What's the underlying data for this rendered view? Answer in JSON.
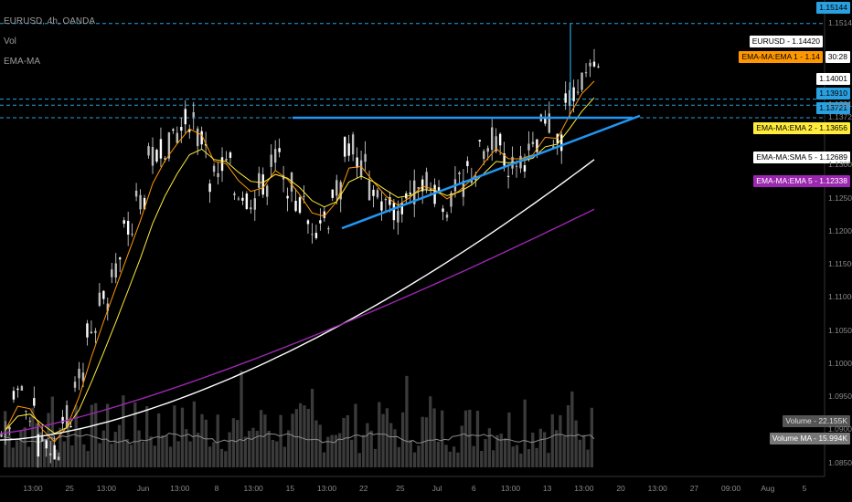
{
  "chart_data": {
    "type": "candlestick",
    "title": "EURUSD, 4h, OANDA",
    "indicators": [
      "Vol",
      "EMA-MA"
    ],
    "y_axis_ticks": [
      "1.15144",
      "1.13910",
      "1.13721",
      "1.13008",
      "1.12500",
      "1.12000",
      "1.11500",
      "1.11000",
      "1.10500",
      "1.10000",
      "1.09500",
      "1.09000",
      "1.08500"
    ],
    "x_axis_ticks": [
      "13:00",
      "25",
      "13:00",
      "Jun",
      "13:00",
      "8",
      "13:00",
      "15",
      "13:00",
      "22",
      "25",
      "Jul",
      "6",
      "13:00",
      "13",
      "13:00",
      "20",
      "13:00",
      "27",
      "09:00",
      "Aug",
      "5"
    ],
    "ylim": [
      1.083,
      1.155
    ],
    "price_series": {
      "approx_close_path": [
        1.09,
        1.096,
        1.093,
        1.088,
        1.087,
        1.092,
        1.098,
        1.105,
        1.11,
        1.115,
        1.12,
        1.125,
        1.131,
        1.133,
        1.135,
        1.137,
        1.134,
        1.128,
        1.13,
        1.126,
        1.125,
        1.127,
        1.131,
        1.127,
        1.124,
        1.121,
        1.122,
        1.126,
        1.133,
        1.13,
        1.126,
        1.124,
        1.123,
        1.126,
        1.128,
        1.126,
        1.124,
        1.127,
        1.129,
        1.132,
        1.134,
        1.13,
        1.131,
        1.132,
        1.136,
        1.134,
        1.14,
        1.143,
        1.144
      ]
    },
    "last_price": {
      "label": "EURUSD",
      "value": "1.14420",
      "color": "#ffffff"
    },
    "countdown": "30:28",
    "price_1400": "1.14001",
    "horizontal_levels": [
      {
        "value": "1.15144",
        "color": "#2aa0e0"
      },
      {
        "value": "1.14001",
        "color": "#2aa0e0"
      },
      {
        "value": "1.13910",
        "color": "#2aa0e0"
      },
      {
        "value": "1.13721",
        "color": "#2aa0e0"
      }
    ],
    "moving_averages": [
      {
        "label": "EMA-MA:EMA 1",
        "value": "1.14",
        "color": "#ff9800"
      },
      {
        "label": "EMA-MA:EMA 2",
        "value": "1.13656",
        "color": "#ffeb3b"
      },
      {
        "label": "EMA-MA:SMA 5",
        "value": "1.12689",
        "color": "#ffffff"
      },
      {
        "label": "EMA-MA:EMA 5",
        "value": "1.12338",
        "color": "#9c27b0"
      }
    ],
    "trendlines": [
      {
        "name": "resistance",
        "color": "#2196f3"
      },
      {
        "name": "rising-support",
        "color": "#2196f3"
      }
    ],
    "volume": {
      "label": "Volume",
      "value": "22.155K",
      "ma_label": "Volume MA",
      "ma_value": "15.994K"
    }
  }
}
